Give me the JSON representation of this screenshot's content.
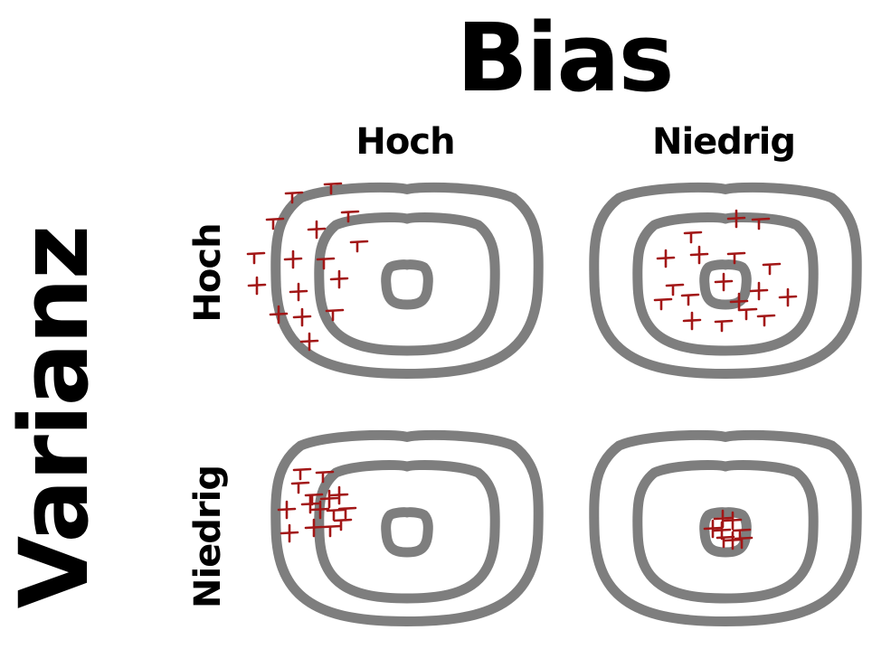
{
  "title": "Bias",
  "side_title": "Varianz",
  "columns": [
    {
      "label": "Hoch"
    },
    {
      "label": "Niedrig"
    }
  ],
  "rows": [
    {
      "label": "Hoch"
    },
    {
      "label": "Niedrig"
    }
  ],
  "colors": {
    "ring": "#7e7e7e",
    "marks": "#a21616",
    "text": "#000000"
  }
}
